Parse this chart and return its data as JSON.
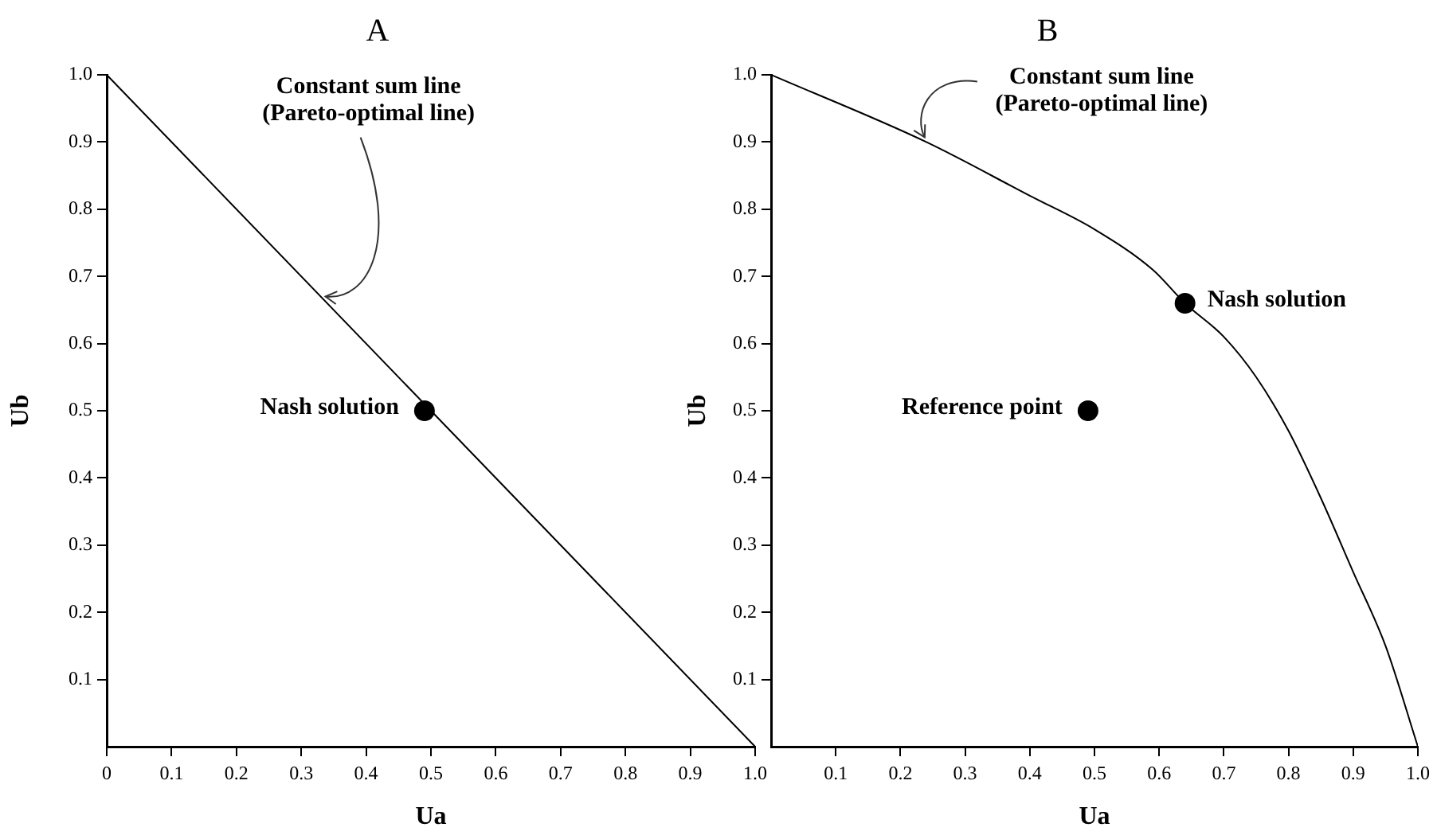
{
  "chart_data": [
    {
      "type": "line",
      "title": "A",
      "xlabel": "Ua",
      "ylabel": "Ub",
      "xlim": [
        0,
        1
      ],
      "ylim": [
        0,
        1
      ],
      "xticks": [
        0,
        0.1,
        0.2,
        0.3,
        0.4,
        0.5,
        0.6,
        0.7,
        0.8,
        0.9,
        {
          "value": 1,
          "label": "1.0"
        }
      ],
      "yticks": [
        0.1,
        0.2,
        0.3,
        0.4,
        0.5,
        0.6,
        0.7,
        0.8,
        0.9,
        {
          "value": 1,
          "label": "1.0"
        }
      ],
      "series": [
        {
          "color": "#000000",
          "x": [
            0,
            1
          ],
          "values": [
            1,
            0
          ],
          "marker": "none"
        },
        {
          "type": "scatter",
          "name": "Nash solution",
          "color": "#000000",
          "x": [
            0.49
          ],
          "values": [
            0.5
          ],
          "marker": "circle"
        }
      ],
      "annotations": [
        {
          "text": "Constant sum line\n(Pareto-optimal line)",
          "x": 0.33,
          "y": 0.67
        }
      ]
    },
    {
      "type": "line",
      "title": "B",
      "xlabel": "Ua",
      "ylabel": "Ub",
      "xlim": [
        0,
        1
      ],
      "ylim": [
        0,
        1
      ],
      "xticks": [
        0.1,
        0.2,
        0.3,
        0.4,
        0.5,
        0.6,
        0.7,
        0.8,
        0.9,
        {
          "value": 1,
          "label": "1.0"
        }
      ],
      "yticks": [
        0.1,
        0.2,
        0.3,
        0.4,
        0.5,
        0.6,
        0.7,
        0.8,
        0.9,
        {
          "value": 1,
          "label": "1.0"
        }
      ],
      "series": [
        {
          "color": "#000000",
          "x": [
            0,
            0.24,
            0.4,
            0.5,
            0.59,
            0.64,
            0.7,
            0.75,
            0.8,
            0.85,
            0.9,
            0.95,
            1
          ],
          "values": [
            1,
            0.9,
            0.82,
            0.77,
            0.71,
            0.66,
            0.61,
            0.55,
            0.47,
            0.37,
            0.26,
            0.15,
            0
          ],
          "marker": "none"
        },
        {
          "type": "scatter",
          "name": "Nash solution",
          "color": "#000000",
          "x": [
            0.64
          ],
          "values": [
            0.66
          ],
          "marker": "circle"
        },
        {
          "type": "scatter",
          "name": "Reference point",
          "color": "#000000",
          "x": [
            0.49
          ],
          "values": [
            0.5
          ],
          "marker": "circle"
        }
      ],
      "annotations": [
        {
          "text": "Constant sum line\n(Pareto-optimal line)",
          "x": 0.24,
          "y": 0.9
        }
      ]
    }
  ]
}
